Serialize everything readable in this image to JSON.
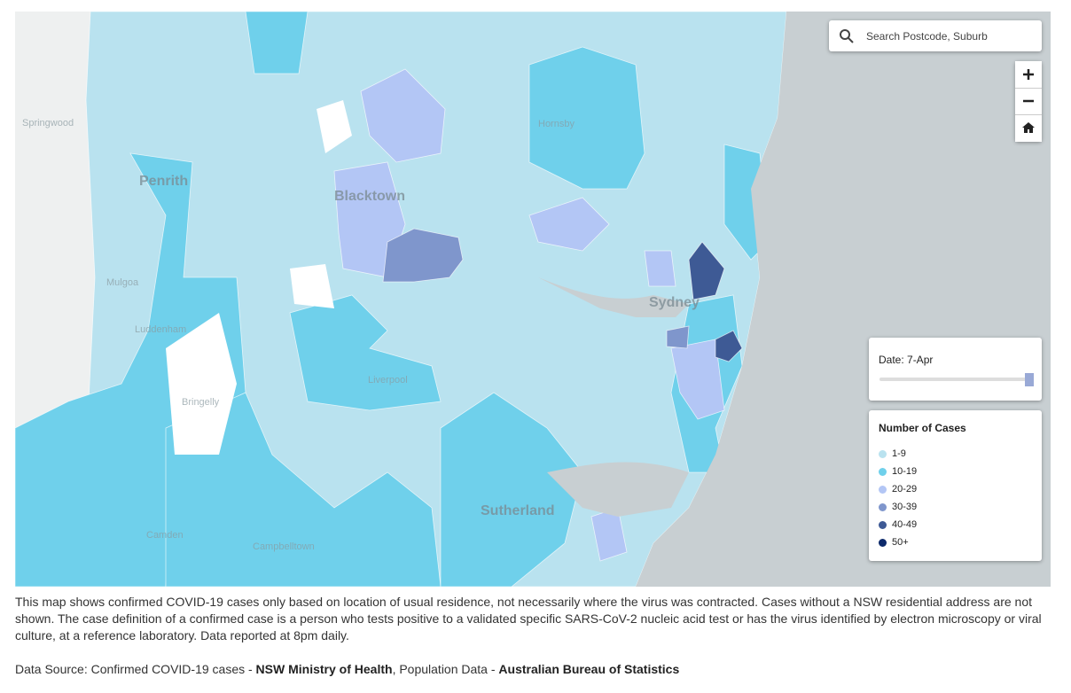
{
  "search": {
    "placeholder": "Search Postcode, Suburb"
  },
  "date": {
    "label": "Date: 7-Apr"
  },
  "legend": {
    "title": "Number of Cases",
    "items": [
      {
        "label": "1-9",
        "color": "#b9e2ef"
      },
      {
        "label": "10-19",
        "color": "#6fd0eb"
      },
      {
        "label": "20-29",
        "color": "#b3c6f5"
      },
      {
        "label": "30-39",
        "color": "#7f96cc"
      },
      {
        "label": "40-49",
        "color": "#3e5a95"
      },
      {
        "label": "50+",
        "color": "#0d2a6b"
      }
    ]
  },
  "map_labels": {
    "major": [
      "Penrith",
      "Blacktown",
      "Sydney",
      "Sutherland"
    ],
    "minor": [
      "Springwood",
      "Mulgoa",
      "Luddenham",
      "Bringelly",
      "Camden",
      "Campbelltown",
      "Liverpool",
      "Hornsby"
    ]
  },
  "caption": "This map shows confirmed COVID-19 cases only based on location of usual residence, not necessarily where the virus was contracted. Cases without a NSW residential address are not shown. The case definition of a confirmed case is a person who tests positive to a validated specific SARS-CoV-2 nucleic acid test or has the virus identified by electron microscopy or viral culture, at a reference laboratory. Data reported at 8pm daily.",
  "source": {
    "prefix": "Data Source: Confirmed COVID-19 cases - ",
    "org1": "NSW Ministry of Health",
    "mid": ", Population Data - ",
    "org2": "Australian Bureau of Statistics"
  }
}
